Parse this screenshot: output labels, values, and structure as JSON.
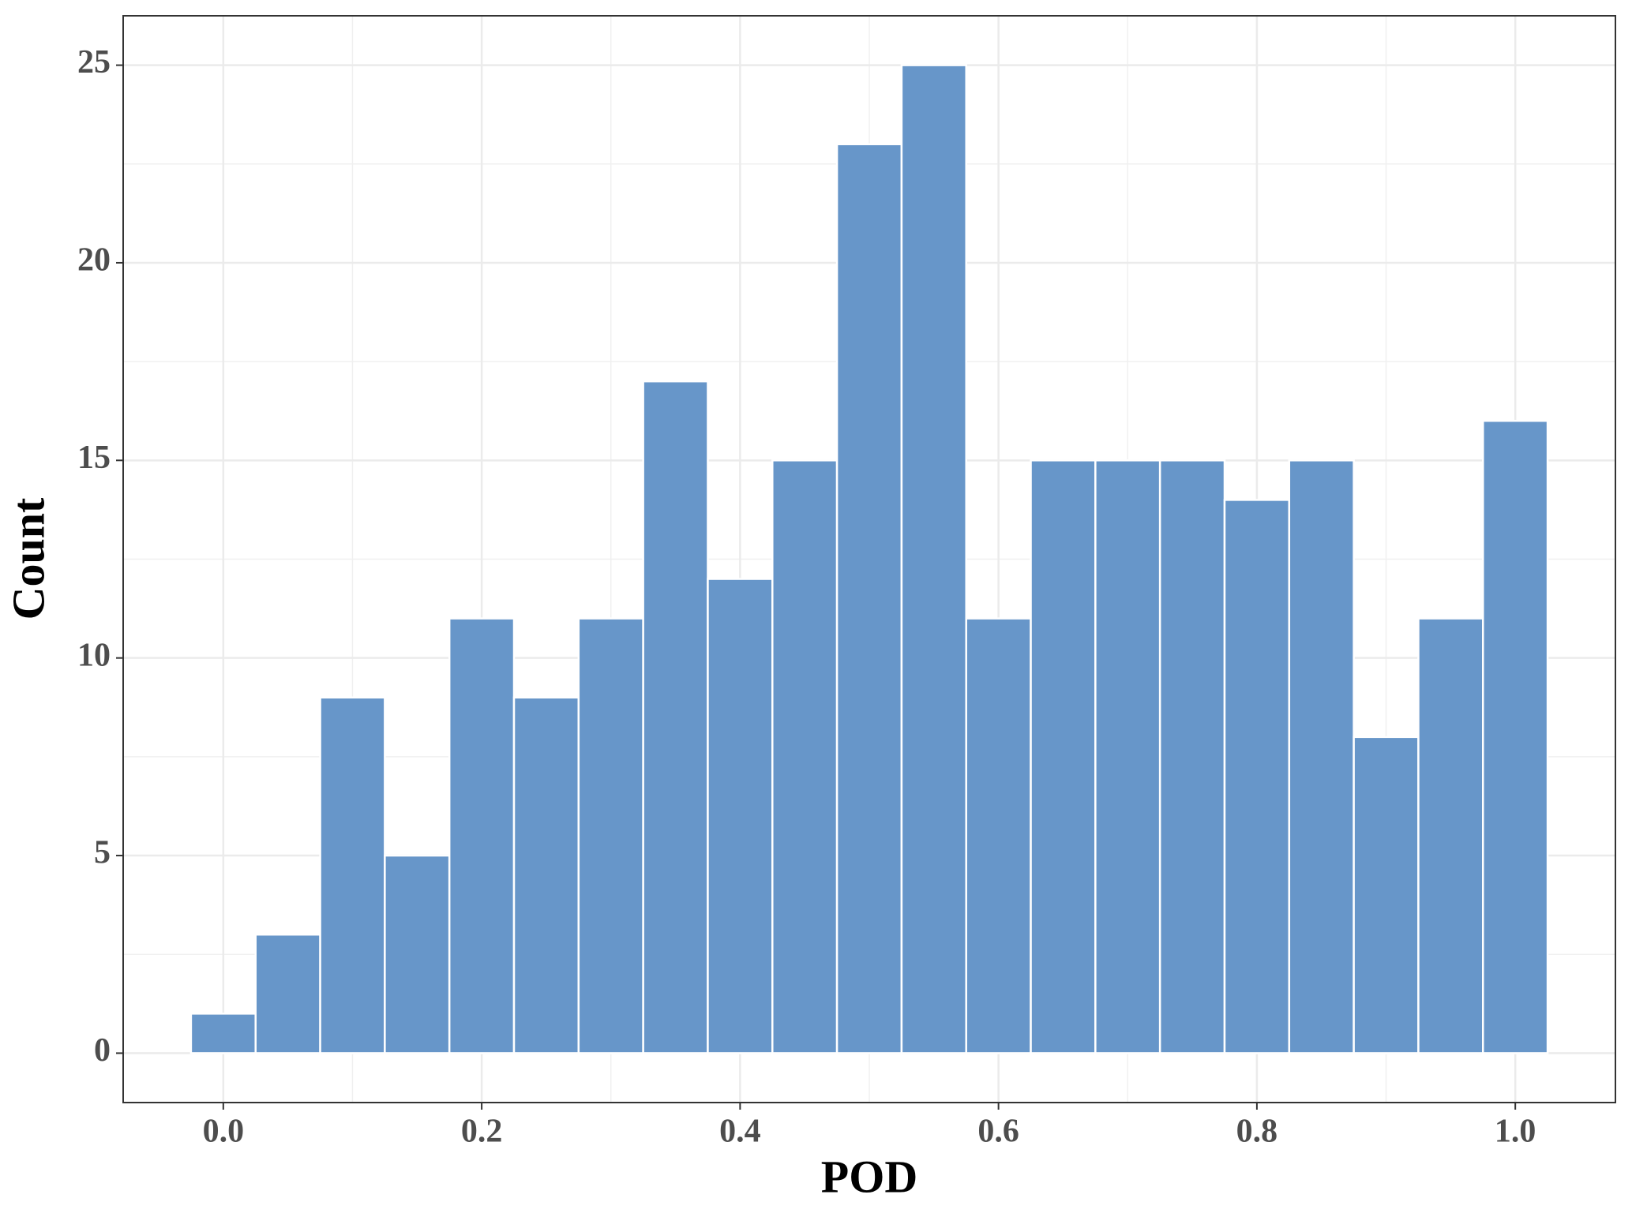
{
  "chart_data": {
    "type": "histogram",
    "x_label": "POD",
    "y_label": "Count",
    "bins": [
      -0.025,
      0.025,
      0.075,
      0.125,
      0.175,
      0.225,
      0.275,
      0.325,
      0.375,
      0.425,
      0.475,
      0.525,
      0.575,
      0.625,
      0.675,
      0.725,
      0.775,
      0.825,
      0.875,
      0.925,
      0.975,
      1.025
    ],
    "values": [
      1,
      3,
      9,
      5,
      11,
      9,
      11,
      17,
      12,
      15,
      23,
      25,
      11,
      15,
      15,
      15,
      14,
      15,
      8,
      11,
      16
    ],
    "color": "#6796c9",
    "xlim": [
      -0.0775,
      1.0775
    ],
    "ylim": [
      -1.25,
      26.25
    ],
    "xticks": [
      {
        "value": 0,
        "label": "0.0"
      },
      0.2,
      0.4,
      0.6,
      0.8,
      {
        "value": 1,
        "label": "1.0"
      }
    ],
    "yticks": [
      0,
      5,
      10,
      15,
      20,
      25
    ],
    "grid": true
  }
}
